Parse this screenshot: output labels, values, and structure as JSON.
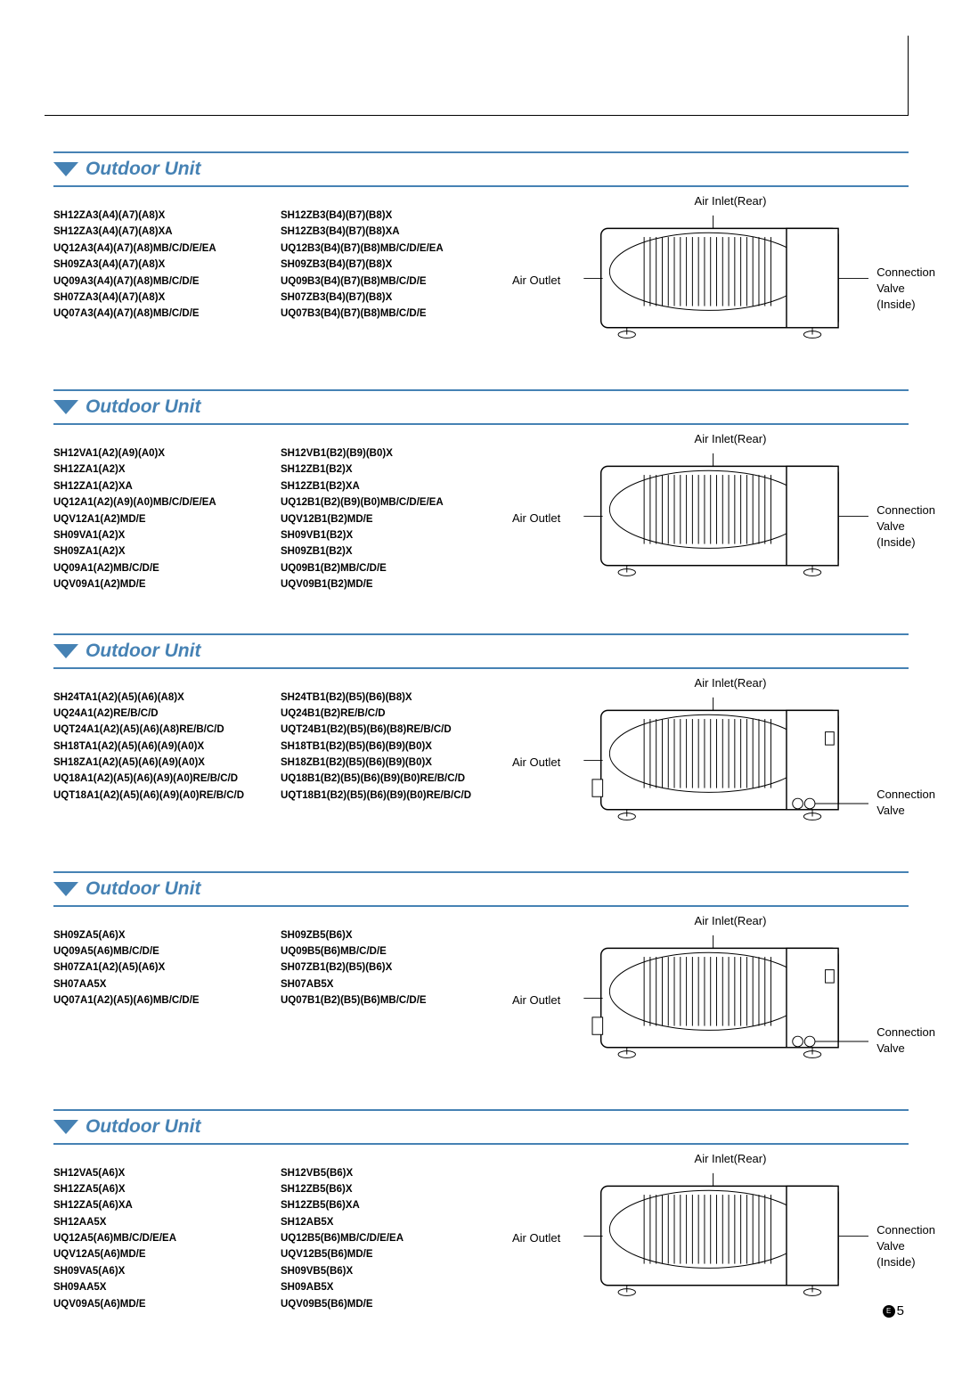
{
  "page": {
    "letter": "E",
    "number": "5"
  },
  "sections": [
    {
      "title": "Outdoor Unit",
      "col1": [
        "SH12ZA3(A4)(A7)(A8)X",
        "SH12ZA3(A4)(A7)(A8)XA",
        "UQ12A3(A4)(A7)(A8)MB/C/D/E/EA",
        "SH09ZA3(A4)(A7)(A8)X",
        "UQ09A3(A4)(A7)(A8)MB/C/D/E",
        "SH07ZA3(A4)(A7)(A8)X",
        "UQ07A3(A4)(A7)(A8)MB/C/D/E"
      ],
      "col2": [
        "SH12ZB3(B4)(B7)(B8)X",
        "SH12ZB3(B4)(B7)(B8)XA",
        "UQ12B3(B4)(B7)(B8)MB/C/D/E/EA",
        "SH09ZB3(B4)(B7)(B8)X",
        "UQ09B3(B4)(B7)(B8)MB/C/D/E",
        "SH07ZB3(B4)(B7)(B8)X",
        "UQ07B3(B4)(B7)(B8)MB/C/D/E"
      ],
      "label_top": "Air Inlet(Rear)",
      "label_left": "Air Outlet",
      "label_right": [
        "Connection",
        "Valve",
        "(Inside)"
      ],
      "diagram_type": "A"
    },
    {
      "title": "Outdoor Unit",
      "col1": [
        "SH12VA1(A2)(A9)(A0)X",
        "SH12ZA1(A2)X",
        "SH12ZA1(A2)XA",
        "UQ12A1(A2)(A9)(A0)MB/C/D/E/EA",
        "UQV12A1(A2)MD/E",
        "SH09VA1(A2)X",
        "SH09ZA1(A2)X",
        "UQ09A1(A2)MB/C/D/E",
        "UQV09A1(A2)MD/E"
      ],
      "col2": [
        "SH12VB1(B2)(B9)(B0)X",
        "SH12ZB1(B2)X",
        "SH12ZB1(B2)XA",
        "UQ12B1(B2)(B9)(B0)MB/C/D/E/EA",
        "UQV12B1(B2)MD/E",
        "SH09VB1(B2)X",
        "SH09ZB1(B2)X",
        "UQ09B1(B2)MB/C/D/E",
        "UQV09B1(B2)MD/E"
      ],
      "label_top": "Air Inlet(Rear)",
      "label_left": "Air Outlet",
      "label_right": [
        "Connection",
        "Valve",
        "(Inside)"
      ],
      "diagram_type": "B"
    },
    {
      "title": "Outdoor Unit",
      "col1": [
        "SH24TA1(A2)(A5)(A6)(A8)X",
        "UQ24A1(A2)RE/B/C/D",
        "UQT24A1(A2)(A5)(A6)(A8)RE/B/C/D",
        "SH18TA1(A2)(A5)(A6)(A9)(A0)X",
        "SH18ZA1(A2)(A5)(A6)(A9)(A0)X",
        "UQ18A1(A2)(A5)(A6)(A9)(A0)RE/B/C/D",
        "UQT18A1(A2)(A5)(A6)(A9)(A0)RE/B/C/D"
      ],
      "col2": [
        "SH24TB1(B2)(B5)(B6)(B8)X",
        "UQ24B1(B2)RE/B/C/D",
        "UQT24B1(B2)(B5)(B6)(B8)RE/B/C/D",
        "SH18TB1(B2)(B5)(B6)(B9)(B0)X",
        "SH18ZB1(B2)(B5)(B6)(B9)(B0)X",
        "UQ18B1(B2)(B5)(B6)(B9)(B0)RE/B/C/D",
        "UQT18B1(B2)(B5)(B6)(B9)(B0)RE/B/C/D"
      ],
      "label_top": "Air Inlet(Rear)",
      "label_left": "Air Outlet",
      "label_right": [
        "Connection",
        "Valve"
      ],
      "diagram_type": "C"
    },
    {
      "title": "Outdoor Unit",
      "col1": [
        "SH09ZA5(A6)X",
        "UQ09A5(A6)MB/C/D/E",
        "SH07ZA1(A2)(A5)(A6)X",
        "SH07AA5X",
        "UQ07A1(A2)(A5)(A6)MB/C/D/E"
      ],
      "col2": [
        "SH09ZB5(B6)X",
        "UQ09B5(B6)MB/C/D/E",
        "SH07ZB1(B2)(B5)(B6)X",
        "SH07AB5X",
        "UQ07B1(B2)(B5)(B6)MB/C/D/E"
      ],
      "label_top": "Air Inlet(Rear)",
      "label_left": "Air Outlet",
      "label_right": [
        "Connection",
        "Valve"
      ],
      "diagram_type": "C"
    },
    {
      "title": "Outdoor Unit",
      "col1": [
        "SH12VA5(A6)X",
        "SH12ZA5(A6)X",
        "SH12ZA5(A6)XA",
        "SH12AA5X",
        "UQ12A5(A6)MB/C/D/E/EA",
        "UQV12A5(A6)MD/E",
        "SH09VA5(A6)X",
        "SH09AA5X",
        "UQV09A5(A6)MD/E"
      ],
      "col2": [
        "SH12VB5(B6)X",
        "SH12ZB5(B6)X",
        "SH12ZB5(B6)XA",
        "SH12AB5X",
        "UQ12B5(B6)MB/C/D/E/EA",
        "UQV12B5(B6)MD/E",
        "SH09VB5(B6)X",
        "SH09AB5X",
        "UQV09B5(B6)MD/E"
      ],
      "label_top": "Air Inlet(Rear)",
      "label_left": "Air Outlet",
      "label_right": [
        "Connection",
        "Valve",
        "(Inside)"
      ],
      "diagram_type": "B"
    }
  ],
  "colors": {
    "accent": "#4682b4",
    "text": "#000000"
  }
}
